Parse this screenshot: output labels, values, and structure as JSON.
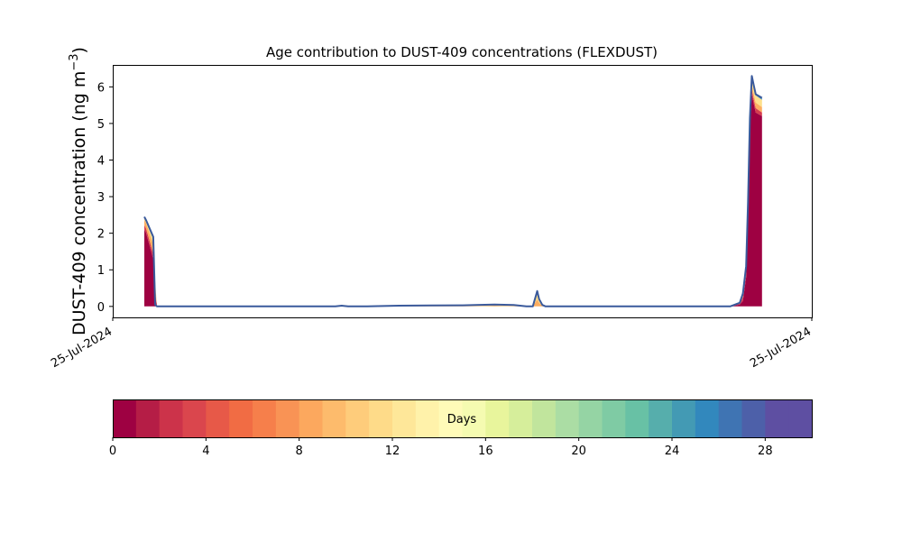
{
  "chart_data": {
    "type": "area",
    "title": "Age contribution to DUST-409 concentrations (FLEXDUST)",
    "ylabel": "DUST-409 concentration (ng m",
    "ylabel_sup": "−3",
    "ylabel_close": ")",
    "x_tick_labels": [
      "25-Jul-2024",
      "25-Jul-2024"
    ],
    "x_range": [
      0,
      1
    ],
    "ylim": [
      -0.3,
      6.6
    ],
    "y_ticks": [
      0,
      1,
      2,
      3,
      4,
      5,
      6
    ],
    "grid": false,
    "x": [
      0.0,
      0.003,
      0.014,
      0.017,
      0.02,
      0.025,
      0.3,
      0.31,
      0.32,
      0.35,
      0.4,
      0.45,
      0.5,
      0.52,
      0.55,
      0.58,
      0.6,
      0.61,
      0.617,
      0.62,
      0.625,
      0.63,
      0.64,
      0.7,
      0.85,
      0.92,
      0.935,
      0.94,
      0.945,
      0.948,
      0.951,
      0.954,
      0.957,
      0.96,
      0.97
    ],
    "series": [
      {
        "color": "#9e0142",
        "values": [
          2.1,
          2.0,
          1.3,
          0.3,
          0.0,
          0.0,
          0.0,
          0.0,
          0.0,
          0.0,
          0.0,
          0.0,
          0.0,
          0.0,
          0.0,
          0.0,
          0.0,
          0.0,
          0.0,
          0.0,
          0.0,
          0.0,
          0.0,
          0.0,
          0.0,
          0.0,
          0.05,
          0.15,
          0.8,
          2.5,
          4.8,
          5.8,
          5.55,
          5.3,
          5.2
        ]
      },
      {
        "color": "#d53e4f",
        "values": [
          0.12,
          0.12,
          0.15,
          0.1,
          0.0,
          0.0,
          0.0,
          0.0,
          0.0,
          0.0,
          0.0,
          0.0,
          0.0,
          0.0,
          0.0,
          0.0,
          0.0,
          0.0,
          0.0,
          0.0,
          0.0,
          0.0,
          0.0,
          0.0,
          0.0,
          0.0,
          0.03,
          0.1,
          0.1,
          0.1,
          0.1,
          0.12,
          0.12,
          0.12,
          0.1
        ]
      },
      {
        "color": "#fdae61",
        "values": [
          0.15,
          0.15,
          0.25,
          0.2,
          0.0,
          0.0,
          0.0,
          0.0,
          0.0,
          0.0,
          0.005,
          0.01,
          0.01,
          0.01,
          0.02,
          0.01,
          0.0,
          0.0,
          0.2,
          0.1,
          0.02,
          0.0,
          0.0,
          0.0,
          0.0,
          0.0,
          0.02,
          0.05,
          0.1,
          0.1,
          0.1,
          0.15,
          0.15,
          0.15,
          0.15
        ]
      },
      {
        "color": "#fee08b",
        "values": [
          0.08,
          0.08,
          0.12,
          0.1,
          0.0,
          0.0,
          0.0,
          0.0,
          0.0,
          0.0,
          0.01,
          0.01,
          0.015,
          0.02,
          0.02,
          0.02,
          0.0,
          0.0,
          0.15,
          0.08,
          0.02,
          0.0,
          0.0,
          0.0,
          0.0,
          0.0,
          0.02,
          0.04,
          0.1,
          0.12,
          0.15,
          0.2,
          0.2,
          0.2,
          0.2
        ]
      },
      {
        "color": "#3288bd",
        "values": [
          0.0,
          0.0,
          0.0,
          0.0,
          0.0,
          0.0,
          0.0,
          0.01,
          0.0,
          0.0,
          0.0,
          0.0,
          0.005,
          0.01,
          0.01,
          0.01,
          0.0,
          0.0,
          0.05,
          0.02,
          0.0,
          0.0,
          0.0,
          0.0,
          0.0,
          0.0,
          0.0,
          0.01,
          0.01,
          0.01,
          0.01,
          0.03,
          0.03,
          0.03,
          0.03
        ]
      }
    ],
    "line": {
      "color": "#3a5a9c",
      "values": [
        2.45,
        2.35,
        1.9,
        0.05,
        0.0,
        0.0,
        0.0,
        0.02,
        0.0,
        0.0,
        0.02,
        0.025,
        0.03,
        0.04,
        0.05,
        0.04,
        0.0,
        0.0,
        0.42,
        0.2,
        0.04,
        0.0,
        0.0,
        0.0,
        0.0,
        0.0,
        0.1,
        0.35,
        1.1,
        2.85,
        5.15,
        6.3,
        6.05,
        5.8,
        5.7
      ]
    },
    "colorbar": {
      "label": "Days",
      "min": 0,
      "max": 30,
      "ticks": [
        "0",
        "4",
        "8",
        "12",
        "16",
        "20",
        "24",
        "28"
      ],
      "colors": [
        "#9e0142",
        "#b51d46",
        "#cc334a",
        "#da464d",
        "#e75948",
        "#f16c44",
        "#f67f4b",
        "#f99355",
        "#fca85e",
        "#fdbb6c",
        "#fecc7b",
        "#fedb89",
        "#fee799",
        "#fff2aa",
        "#fffbb8",
        "#f5fbb1",
        "#e8f59c",
        "#d6ee9b",
        "#c1e59d",
        "#abdda4",
        "#95d4a4",
        "#7fcba4",
        "#68c1a5",
        "#56aeac",
        "#439ab4",
        "#3288bd",
        "#3f74b3",
        "#4d60a9",
        "#5e4fa2",
        "#5e4fa2"
      ]
    }
  }
}
